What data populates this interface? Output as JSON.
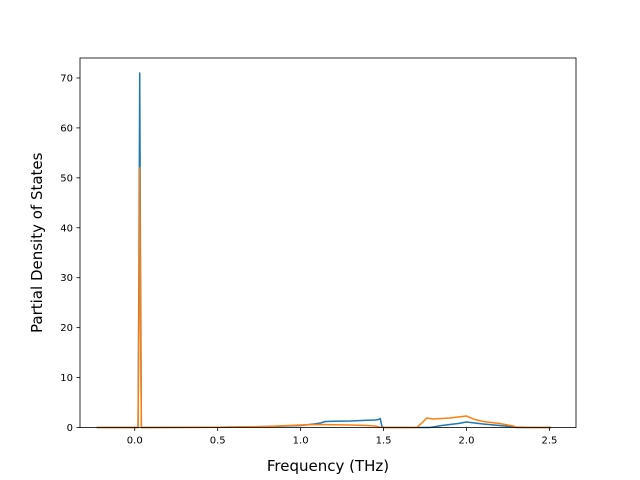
{
  "chart_data": {
    "type": "line",
    "title": "",
    "xlabel": "Frequency (THz)",
    "ylabel": "Partial Density of States",
    "xlim": [
      -0.33,
      2.66
    ],
    "ylim": [
      0,
      74
    ],
    "x_ticks": [
      0.0,
      0.5,
      1.0,
      1.5,
      2.0,
      2.5
    ],
    "x_tick_labels": [
      "0.0",
      "0.5",
      "1.0",
      "1.5",
      "2.0",
      "2.5"
    ],
    "y_ticks": [
      0,
      10,
      20,
      30,
      40,
      50,
      60,
      70
    ],
    "y_tick_labels": [
      "0",
      "10",
      "20",
      "30",
      "40",
      "50",
      "60",
      "70"
    ],
    "grid": false,
    "legend": null,
    "series": [
      {
        "color": "#1f77b4",
        "x": [
          -0.23,
          -0.01,
          0.0,
          0.01,
          0.02,
          0.025,
          0.03,
          0.035,
          0.04,
          0.05,
          0.06,
          0.5,
          0.8,
          1.0,
          1.08,
          1.12,
          1.15,
          1.2,
          1.3,
          1.4,
          1.45,
          1.47,
          1.48,
          1.49,
          1.5,
          1.6,
          1.7,
          1.78,
          1.85,
          1.9,
          1.95,
          2.0,
          2.05,
          2.1,
          2.2,
          2.28,
          2.3,
          2.4,
          2.51
        ],
        "y": [
          0,
          0,
          0,
          0,
          0,
          30,
          71,
          30,
          0,
          0,
          0,
          0.05,
          0.2,
          0.4,
          0.7,
          0.9,
          1.2,
          1.25,
          1.3,
          1.45,
          1.5,
          1.6,
          1.8,
          0.2,
          0,
          0,
          0,
          0,
          0.4,
          0.6,
          0.8,
          1.1,
          0.9,
          0.7,
          0.4,
          0.1,
          0,
          0,
          0
        ]
      },
      {
        "color": "#ff7f0e",
        "x": [
          -0.23,
          -0.01,
          0.0,
          0.01,
          0.02,
          0.025,
          0.03,
          0.035,
          0.04,
          0.05,
          0.06,
          0.5,
          0.8,
          1.0,
          1.1,
          1.2,
          1.3,
          1.4,
          1.45,
          1.47,
          1.5,
          1.6,
          1.7,
          1.74,
          1.76,
          1.78,
          1.8,
          1.85,
          1.9,
          1.95,
          2.0,
          2.05,
          2.1,
          2.2,
          2.28,
          2.3,
          2.4,
          2.51
        ],
        "y": [
          0,
          0,
          0,
          0,
          0,
          20,
          52,
          20,
          0,
          0,
          0,
          0.05,
          0.2,
          0.5,
          0.6,
          0.55,
          0.5,
          0.4,
          0.3,
          0.1,
          0,
          0,
          0,
          1.2,
          1.9,
          1.8,
          1.7,
          1.8,
          1.9,
          2.1,
          2.3,
          1.6,
          1.2,
          0.8,
          0.3,
          0.1,
          0,
          0
        ]
      }
    ]
  }
}
